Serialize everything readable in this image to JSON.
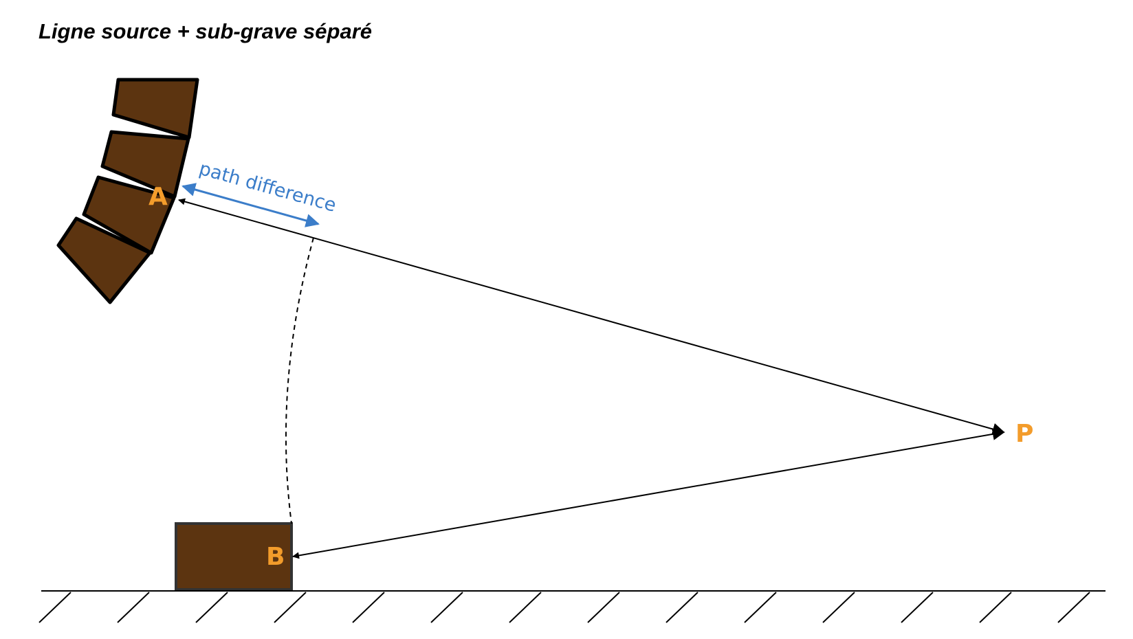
{
  "title": "Ligne source + sub-grave séparé",
  "labels": {
    "point_a": "A",
    "point_b": "B",
    "point_p": "P",
    "path_difference": "path difference"
  },
  "colors": {
    "cabinet_fill": "#5c3410",
    "cabinet_stroke": "#000000",
    "point_label": "#f39c2b",
    "path_difference": "#3b7dc9",
    "line": "#000000",
    "ground": "#000000"
  }
}
